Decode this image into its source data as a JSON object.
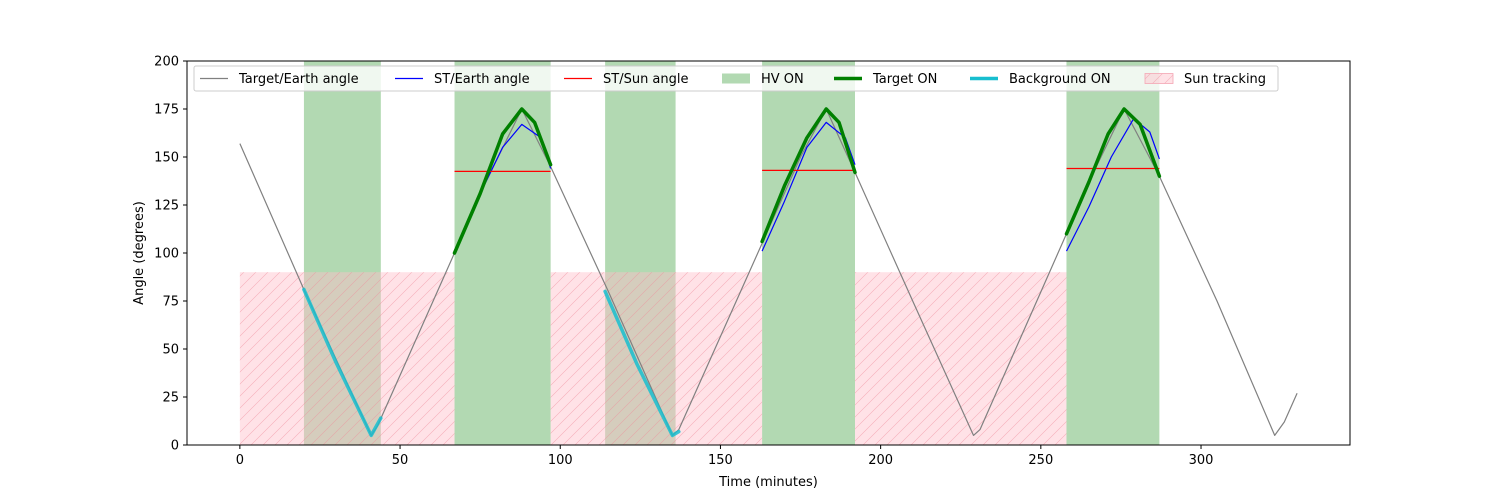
{
  "chart_data": {
    "type": "line",
    "xlabel": "Time (minutes)",
    "ylabel": "Angle (degrees)",
    "xlim": [
      -16.5,
      346.5
    ],
    "ylim": [
      0,
      200
    ],
    "xticks": [
      0,
      50,
      100,
      150,
      200,
      250,
      300
    ],
    "yticks": [
      0,
      25,
      50,
      75,
      100,
      125,
      150,
      175,
      200
    ],
    "grid": false,
    "legend_position": "top",
    "colors": {
      "target_earth": "#808080",
      "st_earth": "#0000ff",
      "st_sun": "#ff0000",
      "hv_on": "#008000",
      "target_on": "#008000",
      "background_on": "#17becf",
      "sun_tracking": "#ffc0cb"
    },
    "series": [
      {
        "name": "Target/Earth angle",
        "points": [
          [
            0,
            157
          ],
          [
            20,
            81
          ],
          [
            41,
            5
          ],
          [
            43,
            10
          ],
          [
            67,
            100
          ],
          [
            75,
            131
          ],
          [
            88,
            175
          ],
          [
            97,
            145
          ],
          [
            115,
            80
          ],
          [
            135,
            5
          ],
          [
            137,
            8
          ],
          [
            163,
            105
          ],
          [
            175,
            150
          ],
          [
            183,
            175
          ],
          [
            192,
            142
          ],
          [
            210,
            75
          ],
          [
            229,
            5
          ],
          [
            231,
            8
          ],
          [
            258,
            110
          ],
          [
            265,
            137
          ],
          [
            276,
            175
          ],
          [
            287,
            140
          ],
          [
            305,
            75
          ],
          [
            323,
            5
          ],
          [
            326,
            12
          ],
          [
            330,
            27
          ]
        ]
      },
      {
        "name": "ST/Earth angle",
        "segments": [
          [
            [
              67,
              100
            ],
            [
              75,
              131
            ],
            [
              82,
              155
            ],
            [
              88,
              167
            ],
            [
              94,
              160
            ],
            [
              97,
              144
            ]
          ],
          [
            [
              163,
              101
            ],
            [
              170,
              127
            ],
            [
              177,
              155
            ],
            [
              183,
              168
            ],
            [
              189,
              160
            ],
            [
              192,
              146
            ]
          ],
          [
            [
              258,
              101
            ],
            [
              265,
              124
            ],
            [
              272,
              150
            ],
            [
              279,
              170
            ],
            [
              284,
              163
            ],
            [
              287,
              149
            ]
          ]
        ]
      },
      {
        "name": "ST/Sun angle",
        "segments": [
          [
            [
              67,
              142.5
            ],
            [
              97,
              142.5
            ]
          ],
          [
            [
              163,
              143
            ],
            [
              192,
              143
            ]
          ],
          [
            [
              258,
              144
            ],
            [
              287,
              144
            ]
          ]
        ]
      },
      {
        "name": "HV ON",
        "intervals": [
          [
            20,
            44
          ],
          [
            67,
            97
          ],
          [
            114,
            136
          ],
          [
            163,
            192
          ],
          [
            258,
            287
          ]
        ]
      },
      {
        "name": "Target ON",
        "segments": [
          [
            [
              67,
              100
            ],
            [
              75,
              131
            ],
            [
              82,
              162
            ],
            [
              88,
              175
            ],
            [
              92,
              168
            ],
            [
              97,
              146
            ]
          ],
          [
            [
              163,
              106
            ],
            [
              170,
              135
            ],
            [
              177,
              160
            ],
            [
              183,
              175
            ],
            [
              187,
              168
            ],
            [
              192,
              142
            ]
          ],
          [
            [
              258,
              110
            ],
            [
              265,
              137
            ],
            [
              271,
              162
            ],
            [
              276,
              175
            ],
            [
              281,
              167
            ],
            [
              287,
              140
            ]
          ]
        ]
      },
      {
        "name": "Background ON",
        "segments": [
          [
            [
              20,
              81
            ],
            [
              30,
              43
            ],
            [
              41,
              5
            ],
            [
              44,
              14
            ]
          ],
          [
            [
              114,
              80
            ],
            [
              124,
              42
            ],
            [
              135,
              5
            ],
            [
              137,
              7
            ]
          ]
        ]
      },
      {
        "name": "Sun tracking",
        "intervals": [
          [
            0,
            67
          ],
          [
            97,
            163
          ],
          [
            192,
            258
          ]
        ],
        "y_range": [
          0,
          90
        ]
      }
    ]
  }
}
